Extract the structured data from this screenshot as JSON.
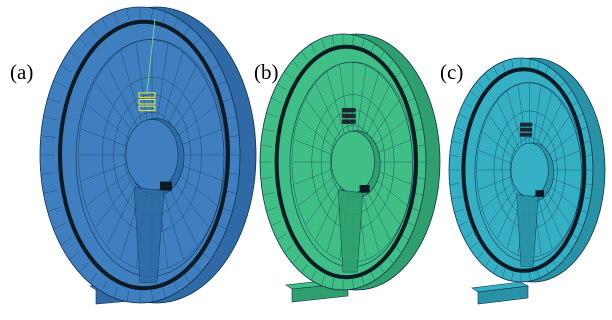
{
  "labels": {
    "a": "(a)",
    "b": "(b)",
    "c": "(c)"
  },
  "colors": {
    "wheel_a_face": "#3f7fbf",
    "wheel_a_rim": "#2f6aa6",
    "wheel_b_face": "#3fbf86",
    "wheel_b_rim": "#2f9f6e",
    "wheel_c_face": "#35afc4",
    "wheel_c_rim": "#2892a6",
    "mesh_line": "#10324a",
    "highlight_a": "#f2ee22",
    "highlight_dark": "#1c2830"
  },
  "panels": [
    {
      "id": "a",
      "face_color_key": "wheel_a_face",
      "rim_color_key": "wheel_a_rim",
      "has_highlight": true
    },
    {
      "id": "b",
      "face_color_key": "wheel_b_face",
      "rim_color_key": "wheel_b_rim",
      "has_highlight": false
    },
    {
      "id": "c",
      "face_color_key": "wheel_c_face",
      "rim_color_key": "wheel_c_rim",
      "has_highlight": false
    }
  ]
}
